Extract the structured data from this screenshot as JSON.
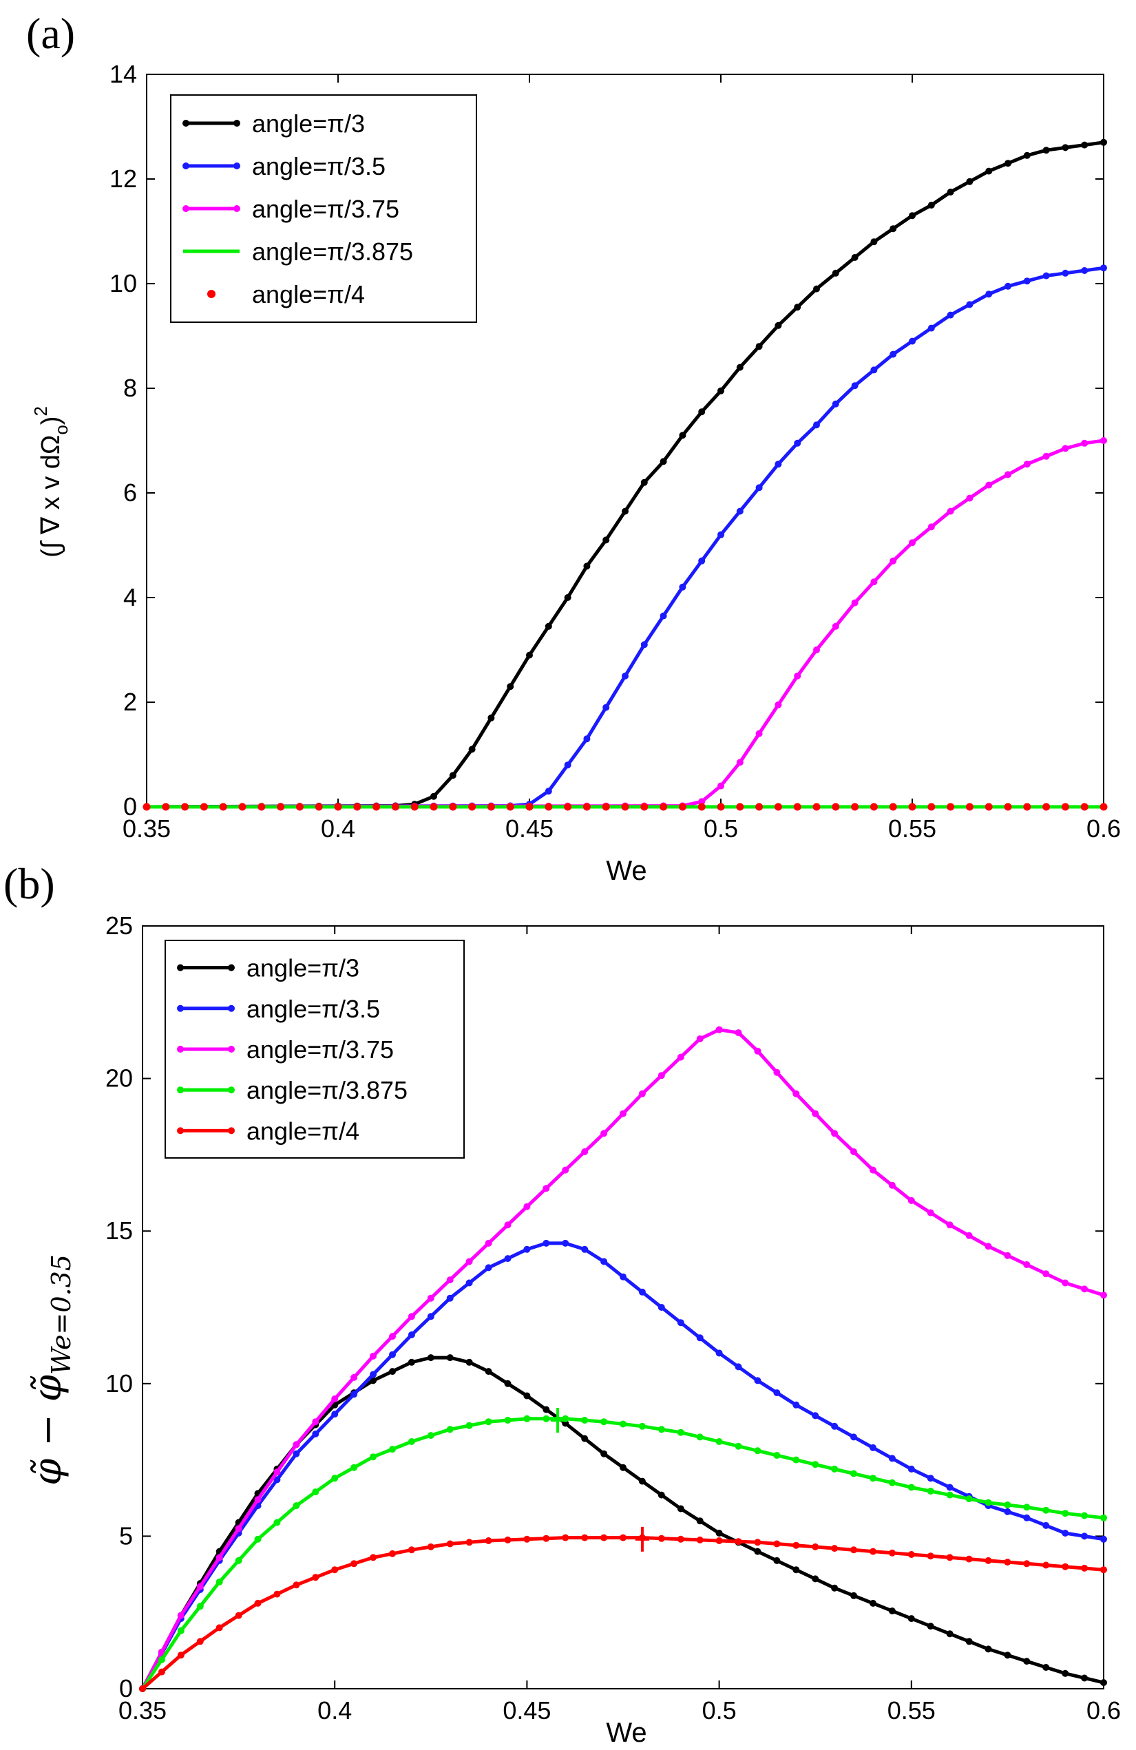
{
  "colors": {
    "black": "#000000",
    "blue": "#1a1aff",
    "magenta": "#ff00ff",
    "green": "#00ee00",
    "red": "#ff0000"
  },
  "chart_data": [
    {
      "panel": "(a)",
      "type": "line",
      "xlabel": "We",
      "ylabel": "(∫ ∇ x v dΩ",
      "ylabel_sub": "o",
      "ylabel_close": ")",
      "ylabel_sup": "2",
      "xlim": [
        0.35,
        0.6
      ],
      "ylim": [
        0,
        14
      ],
      "xticks": [
        "0.35",
        "0.4",
        "0.45",
        "0.5",
        "0.55",
        "0.6"
      ],
      "yticks": [
        "0",
        "2",
        "4",
        "6",
        "8",
        "10",
        "12",
        "14"
      ],
      "legend_position": "top-left",
      "series": [
        {
          "name": "angle=π/3",
          "color": "#000000",
          "style": "line-dot",
          "x": [
            0.35,
            0.415,
            0.42,
            0.425,
            0.43,
            0.435,
            0.44,
            0.445,
            0.45,
            0.455,
            0.46,
            0.465,
            0.47,
            0.475,
            0.48,
            0.485,
            0.49,
            0.495,
            0.5,
            0.505,
            0.51,
            0.515,
            0.52,
            0.525,
            0.53,
            0.535,
            0.54,
            0.545,
            0.55,
            0.555,
            0.56,
            0.565,
            0.57,
            0.575,
            0.58,
            0.585,
            0.59,
            0.595,
            0.6
          ],
          "y": [
            0,
            0.02,
            0.05,
            0.2,
            0.6,
            1.1,
            1.7,
            2.3,
            2.9,
            3.45,
            4.0,
            4.6,
            5.1,
            5.65,
            6.2,
            6.6,
            7.1,
            7.55,
            7.95,
            8.4,
            8.8,
            9.2,
            9.55,
            9.9,
            10.2,
            10.5,
            10.8,
            11.05,
            11.3,
            11.5,
            11.75,
            11.95,
            12.15,
            12.3,
            12.45,
            12.55,
            12.6,
            12.65,
            12.7
          ]
        },
        {
          "name": "angle=π/3.5",
          "color": "#1a1aff",
          "style": "line-dot",
          "x": [
            0.35,
            0.445,
            0.45,
            0.455,
            0.46,
            0.465,
            0.47,
            0.475,
            0.48,
            0.485,
            0.49,
            0.495,
            0.5,
            0.505,
            0.51,
            0.515,
            0.52,
            0.525,
            0.53,
            0.535,
            0.54,
            0.545,
            0.55,
            0.555,
            0.56,
            0.565,
            0.57,
            0.575,
            0.58,
            0.585,
            0.59,
            0.595,
            0.6
          ],
          "y": [
            0,
            0.02,
            0.05,
            0.3,
            0.8,
            1.3,
            1.9,
            2.5,
            3.1,
            3.65,
            4.2,
            4.7,
            5.2,
            5.65,
            6.1,
            6.55,
            6.95,
            7.3,
            7.7,
            8.05,
            8.35,
            8.65,
            8.9,
            9.15,
            9.4,
            9.6,
            9.8,
            9.95,
            10.05,
            10.15,
            10.2,
            10.25,
            10.3
          ]
        },
        {
          "name": "angle=π/3.75",
          "color": "#ff00ff",
          "style": "line-dot",
          "x": [
            0.35,
            0.49,
            0.495,
            0.5,
            0.505,
            0.51,
            0.515,
            0.52,
            0.525,
            0.53,
            0.535,
            0.54,
            0.545,
            0.55,
            0.555,
            0.56,
            0.565,
            0.57,
            0.575,
            0.58,
            0.585,
            0.59,
            0.595,
            0.6
          ],
          "y": [
            0,
            0.02,
            0.1,
            0.4,
            0.85,
            1.4,
            1.95,
            2.5,
            3.0,
            3.45,
            3.9,
            4.3,
            4.7,
            5.05,
            5.35,
            5.65,
            5.9,
            6.15,
            6.35,
            6.55,
            6.7,
            6.85,
            6.95,
            7.0
          ]
        },
        {
          "name": "angle=π/3.875",
          "color": "#00ee00",
          "style": "line",
          "x": [
            0.35,
            0.6
          ],
          "y": [
            0,
            0
          ]
        },
        {
          "name": "angle=π/4",
          "color": "#ff0000",
          "style": "dots",
          "x": [
            0.35,
            0.355,
            0.36,
            0.365,
            0.37,
            0.375,
            0.38,
            0.385,
            0.39,
            0.395,
            0.4,
            0.405,
            0.41,
            0.415,
            0.42,
            0.425,
            0.43,
            0.435,
            0.44,
            0.445,
            0.45,
            0.455,
            0.46,
            0.465,
            0.47,
            0.475,
            0.48,
            0.485,
            0.49,
            0.495,
            0.5,
            0.505,
            0.51,
            0.515,
            0.52,
            0.525,
            0.53,
            0.535,
            0.54,
            0.545,
            0.55,
            0.555,
            0.56,
            0.565,
            0.57,
            0.575,
            0.58,
            0.585,
            0.59,
            0.595,
            0.6
          ],
          "y": [
            0,
            0,
            0,
            0,
            0,
            0,
            0,
            0,
            0,
            0,
            0,
            0,
            0,
            0,
            0,
            0,
            0,
            0,
            0,
            0,
            0,
            0,
            0,
            0,
            0,
            0,
            0,
            0,
            0,
            0,
            0,
            0,
            0,
            0,
            0,
            0,
            0,
            0,
            0,
            0,
            0,
            0,
            0,
            0,
            0,
            0,
            0,
            0,
            0,
            0,
            0
          ]
        }
      ]
    },
    {
      "panel": "(b)",
      "type": "line",
      "xlabel": "We",
      "ylabel": "φ̃ − φ̃",
      "ylabel_sub": "We=0.35",
      "xlim": [
        0.35,
        0.6
      ],
      "ylim": [
        0,
        25
      ],
      "xticks": [
        "0.35",
        "0.4",
        "0.45",
        "0.5",
        "0.55",
        "0.6"
      ],
      "yticks": [
        "0",
        "5",
        "10",
        "15",
        "20",
        "25"
      ],
      "legend_position": "top-left",
      "markers": [
        {
          "series": "angle=π/3.875",
          "x": 0.458,
          "y": 8.8,
          "color": "#00ee00"
        },
        {
          "series": "angle=π/4",
          "x": 0.48,
          "y": 4.9,
          "color": "#ff0000"
        }
      ],
      "series": [
        {
          "name": "angle=π/3",
          "color": "#000000",
          "style": "line-dot",
          "x": [
            0.35,
            0.36,
            0.37,
            0.38,
            0.39,
            0.4,
            0.41,
            0.42,
            0.425,
            0.43,
            0.435,
            0.44,
            0.45,
            0.46,
            0.47,
            0.48,
            0.49,
            0.5,
            0.51,
            0.52,
            0.53,
            0.54,
            0.55,
            0.56,
            0.57,
            0.58,
            0.59,
            0.6
          ],
          "y": [
            0,
            2.4,
            4.5,
            6.4,
            8.0,
            9.3,
            10.1,
            10.7,
            10.85,
            10.85,
            10.7,
            10.4,
            9.6,
            8.7,
            7.7,
            6.8,
            5.9,
            5.1,
            4.5,
            3.9,
            3.3,
            2.8,
            2.3,
            1.8,
            1.3,
            0.9,
            0.5,
            0.2
          ]
        },
        {
          "name": "angle=π/3.5",
          "color": "#1a1aff",
          "style": "line-dot",
          "x": [
            0.35,
            0.36,
            0.37,
            0.38,
            0.39,
            0.4,
            0.41,
            0.42,
            0.43,
            0.44,
            0.45,
            0.455,
            0.46,
            0.465,
            0.47,
            0.48,
            0.49,
            0.5,
            0.51,
            0.52,
            0.53,
            0.54,
            0.55,
            0.56,
            0.57,
            0.58,
            0.59,
            0.6
          ],
          "y": [
            0,
            2.3,
            4.2,
            6.0,
            7.7,
            9.0,
            10.3,
            11.6,
            12.8,
            13.8,
            14.4,
            14.6,
            14.6,
            14.4,
            14.0,
            13.0,
            12.0,
            11.0,
            10.1,
            9.3,
            8.6,
            7.9,
            7.2,
            6.6,
            6.0,
            5.6,
            5.1,
            4.9
          ]
        },
        {
          "name": "angle=π/3.75",
          "color": "#ff00ff",
          "style": "line-dot",
          "x": [
            0.35,
            0.36,
            0.37,
            0.38,
            0.39,
            0.4,
            0.41,
            0.42,
            0.43,
            0.44,
            0.45,
            0.46,
            0.47,
            0.48,
            0.49,
            0.495,
            0.5,
            0.505,
            0.51,
            0.52,
            0.53,
            0.54,
            0.55,
            0.56,
            0.57,
            0.58,
            0.59,
            0.6
          ],
          "y": [
            0,
            2.4,
            4.3,
            6.2,
            8.0,
            9.5,
            10.9,
            12.2,
            13.4,
            14.6,
            15.8,
            17.0,
            18.2,
            19.5,
            20.7,
            21.3,
            21.6,
            21.5,
            20.9,
            19.5,
            18.2,
            17.0,
            16.0,
            15.2,
            14.5,
            13.9,
            13.3,
            12.9
          ]
        },
        {
          "name": "angle=π/3.875",
          "color": "#00ee00",
          "style": "line-dot",
          "x": [
            0.35,
            0.36,
            0.37,
            0.38,
            0.39,
            0.4,
            0.41,
            0.42,
            0.43,
            0.44,
            0.45,
            0.46,
            0.47,
            0.48,
            0.49,
            0.5,
            0.51,
            0.52,
            0.53,
            0.54,
            0.55,
            0.56,
            0.57,
            0.58,
            0.59,
            0.6
          ],
          "y": [
            0,
            1.9,
            3.5,
            4.9,
            6.0,
            6.9,
            7.6,
            8.1,
            8.5,
            8.75,
            8.85,
            8.85,
            8.75,
            8.6,
            8.4,
            8.1,
            7.8,
            7.5,
            7.2,
            6.9,
            6.6,
            6.35,
            6.1,
            5.95,
            5.75,
            5.6
          ]
        },
        {
          "name": "angle=π/4",
          "color": "#ff0000",
          "style": "line-dot",
          "x": [
            0.35,
            0.36,
            0.37,
            0.38,
            0.39,
            0.4,
            0.41,
            0.42,
            0.43,
            0.44,
            0.45,
            0.46,
            0.47,
            0.48,
            0.49,
            0.5,
            0.51,
            0.52,
            0.53,
            0.54,
            0.55,
            0.56,
            0.57,
            0.58,
            0.59,
            0.6
          ],
          "y": [
            0,
            1.1,
            2.0,
            2.8,
            3.4,
            3.9,
            4.3,
            4.55,
            4.75,
            4.85,
            4.9,
            4.95,
            4.95,
            4.95,
            4.9,
            4.85,
            4.8,
            4.7,
            4.6,
            4.5,
            4.4,
            4.3,
            4.2,
            4.1,
            4.0,
            3.9
          ]
        }
      ]
    }
  ]
}
